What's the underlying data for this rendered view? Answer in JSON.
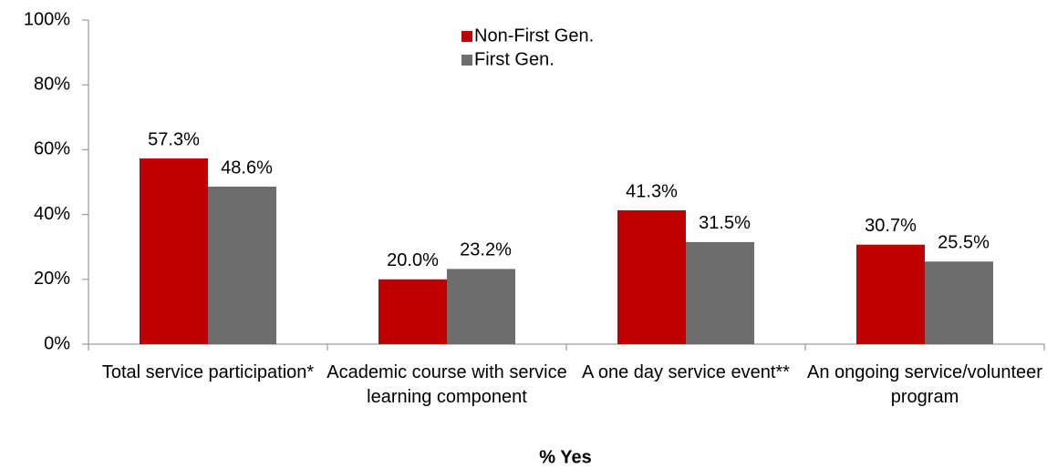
{
  "chart_data": {
    "type": "bar",
    "categories": [
      "Total service participation*",
      "Academic course with service learning component",
      "A one day service event**",
      "An ongoing service/volunteer program"
    ],
    "series": [
      {
        "name": "Non-First Gen.",
        "color": "#c00000",
        "values": [
          57.3,
          20.0,
          41.3,
          30.7
        ],
        "value_labels": [
          "57.3%",
          "20.0%",
          "41.3%",
          "30.7%"
        ]
      },
      {
        "name": "First Gen.",
        "color": "#6d6d6d",
        "values": [
          48.6,
          23.2,
          31.5,
          25.5
        ],
        "value_labels": [
          "48.6%",
          "23.2%",
          "31.5%",
          "25.5%"
        ]
      }
    ],
    "x_label": "% Yes",
    "ylim": [
      0,
      100
    ],
    "yticks": [
      {
        "value": 0,
        "label": "0%"
      },
      {
        "value": 20,
        "label": "20%"
      },
      {
        "value": 40,
        "label": "40%"
      },
      {
        "value": 60,
        "label": "60%"
      },
      {
        "value": 80,
        "label": "80%"
      },
      {
        "value": 100,
        "label": "100%"
      }
    ],
    "legend": "top"
  }
}
